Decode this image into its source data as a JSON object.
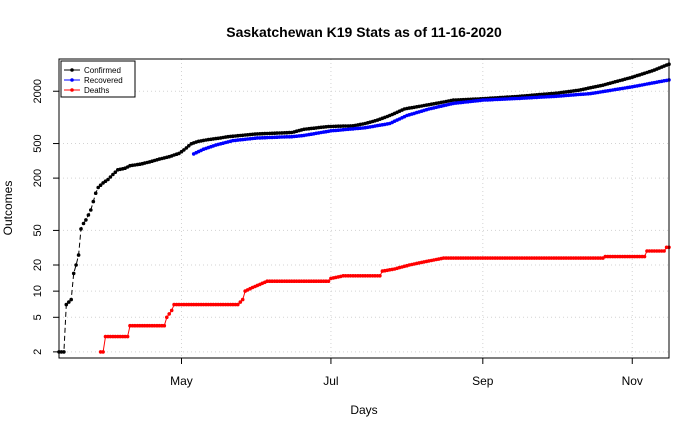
{
  "chart_data": {
    "type": "line",
    "title": "Saskatchewan K19 Stats as of 11-16-2020",
    "xlabel": "Days",
    "ylabel": "Outcomes",
    "log_scale_y": true,
    "ylim": [
      1.7,
      4700
    ],
    "xlim": [
      "2020-03-12",
      "2020-11-16"
    ],
    "y_ticks": [
      2,
      5,
      10,
      20,
      50,
      200,
      500,
      2000
    ],
    "y_tick_labels": [
      "2",
      "5",
      "10",
      "20",
      "50",
      "200",
      "500",
      "2000"
    ],
    "x_ticks": [
      "2020-05-01",
      "2020-07-01",
      "2020-09-01",
      "2020-11-01"
    ],
    "x_tick_labels": [
      "May",
      "Jul",
      "Sep",
      "Nov"
    ],
    "grid": true,
    "legend_position": "top-left",
    "series": [
      {
        "name": "Confirmed",
        "color": "#000000",
        "points": [
          [
            "2020-03-12",
            2
          ],
          [
            "2020-03-14",
            2
          ],
          [
            "2020-03-15",
            7
          ],
          [
            "2020-03-17",
            8
          ],
          [
            "2020-03-18",
            16
          ],
          [
            "2020-03-19",
            20
          ],
          [
            "2020-03-20",
            26
          ],
          [
            "2020-03-21",
            52
          ],
          [
            "2020-03-22",
            60
          ],
          [
            "2020-03-23",
            66
          ],
          [
            "2020-03-25",
            86
          ],
          [
            "2020-03-27",
            134
          ],
          [
            "2020-03-28",
            156
          ],
          [
            "2020-03-30",
            176
          ],
          [
            "2020-04-01",
            193
          ],
          [
            "2020-04-03",
            220
          ],
          [
            "2020-04-05",
            249
          ],
          [
            "2020-04-08",
            260
          ],
          [
            "2020-04-10",
            278
          ],
          [
            "2020-04-14",
            289
          ],
          [
            "2020-04-18",
            307
          ],
          [
            "2020-04-22",
            331
          ],
          [
            "2020-04-26",
            353
          ],
          [
            "2020-04-30",
            385
          ],
          [
            "2020-05-02",
            422
          ],
          [
            "2020-05-05",
            497
          ],
          [
            "2020-05-08",
            531
          ],
          [
            "2020-05-12",
            555
          ],
          [
            "2020-05-16",
            575
          ],
          [
            "2020-05-20",
            600
          ],
          [
            "2020-06-01",
            646
          ],
          [
            "2020-06-15",
            670
          ],
          [
            "2020-06-20",
            730
          ],
          [
            "2020-06-30",
            785
          ],
          [
            "2020-07-10",
            800
          ],
          [
            "2020-07-15",
            850
          ],
          [
            "2020-07-20",
            930
          ],
          [
            "2020-07-25",
            1050
          ],
          [
            "2020-07-31",
            1250
          ],
          [
            "2020-08-10",
            1400
          ],
          [
            "2020-08-20",
            1580
          ],
          [
            "2020-09-01",
            1640
          ],
          [
            "2020-09-15",
            1740
          ],
          [
            "2020-10-01",
            1900
          ],
          [
            "2020-10-10",
            2050
          ],
          [
            "2020-10-20",
            2350
          ],
          [
            "2020-11-01",
            2900
          ],
          [
            "2020-11-10",
            3500
          ],
          [
            "2020-11-16",
            4100
          ]
        ]
      },
      {
        "name": "Recovered",
        "color": "#0000ff",
        "points": [
          [
            "2020-05-06",
            380
          ],
          [
            "2020-05-10",
            430
          ],
          [
            "2020-05-15",
            480
          ],
          [
            "2020-05-22",
            540
          ],
          [
            "2020-06-01",
            580
          ],
          [
            "2020-06-15",
            600
          ],
          [
            "2020-06-20",
            620
          ],
          [
            "2020-07-01",
            700
          ],
          [
            "2020-07-15",
            760
          ],
          [
            "2020-07-25",
            850
          ],
          [
            "2020-08-01",
            1050
          ],
          [
            "2020-08-10",
            1250
          ],
          [
            "2020-08-20",
            1450
          ],
          [
            "2020-09-01",
            1580
          ],
          [
            "2020-09-15",
            1650
          ],
          [
            "2020-10-01",
            1750
          ],
          [
            "2020-10-15",
            1880
          ],
          [
            "2020-11-01",
            2250
          ],
          [
            "2020-11-16",
            2700
          ]
        ]
      },
      {
        "name": "Deaths",
        "color": "#ff0000",
        "points": [
          [
            "2020-03-29",
            2
          ],
          [
            "2020-03-30",
            2
          ],
          [
            "2020-03-31",
            3
          ],
          [
            "2020-04-09",
            3
          ],
          [
            "2020-04-10",
            4
          ],
          [
            "2020-04-24",
            4
          ],
          [
            "2020-04-25",
            5
          ],
          [
            "2020-04-27",
            6
          ],
          [
            "2020-04-28",
            7
          ],
          [
            "2020-05-24",
            7
          ],
          [
            "2020-05-26",
            8
          ],
          [
            "2020-05-27",
            10
          ],
          [
            "2020-05-30",
            11
          ],
          [
            "2020-06-05",
            13
          ],
          [
            "2020-06-30",
            13
          ],
          [
            "2020-07-01",
            14
          ],
          [
            "2020-07-06",
            15
          ],
          [
            "2020-07-21",
            15
          ],
          [
            "2020-07-22",
            17
          ],
          [
            "2020-07-27",
            18
          ],
          [
            "2020-08-02",
            20
          ],
          [
            "2020-08-09",
            22
          ],
          [
            "2020-08-16",
            24
          ],
          [
            "2020-10-20",
            24
          ],
          [
            "2020-10-21",
            25
          ],
          [
            "2020-11-06",
            25
          ],
          [
            "2020-11-07",
            29
          ],
          [
            "2020-11-14",
            29
          ],
          [
            "2020-11-15",
            32
          ],
          [
            "2020-11-16",
            32
          ]
        ]
      }
    ]
  }
}
